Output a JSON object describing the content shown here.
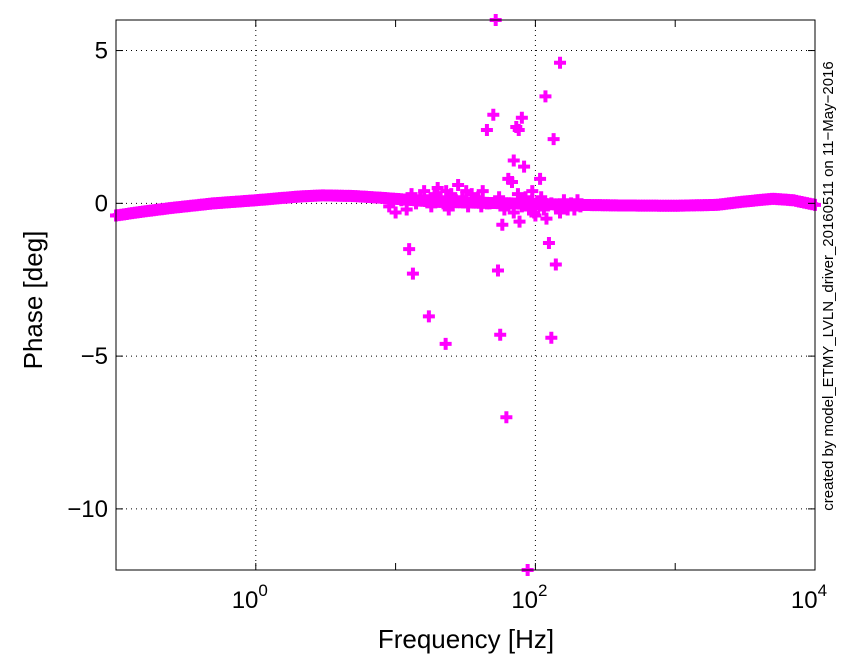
{
  "chart_data": {
    "type": "scatter",
    "xlabel": "Frequency [Hz]",
    "ylabel": "Phase [deg]",
    "x_scale": "log",
    "xlim": [
      0.1,
      10000
    ],
    "ylim": [
      -12,
      6
    ],
    "x_ticks": [
      {
        "value": 1,
        "base": "10",
        "exp": "0"
      },
      {
        "value": 100,
        "base": "10",
        "exp": "2"
      },
      {
        "value": 10000,
        "base": "10",
        "exp": "4"
      }
    ],
    "y_ticks": [
      {
        "value": 5,
        "label": "5"
      },
      {
        "value": 0,
        "label": "0"
      },
      {
        "value": -5,
        "label": "−5"
      },
      {
        "value": -10,
        "label": "−10"
      }
    ],
    "grid": true,
    "marker": "plus",
    "colors": {
      "series": "#ff00ff",
      "axes": "#000000",
      "grid": "#000000"
    },
    "side_note": "created by model_ETMY_LVLN_driver_20160511 on 11−May−2016",
    "series": [
      {
        "curve": [
          [
            0.1,
            -0.4
          ],
          [
            0.15,
            -0.28
          ],
          [
            0.25,
            -0.15
          ],
          [
            0.5,
            0.0
          ],
          [
            1,
            0.1
          ],
          [
            2,
            0.22
          ],
          [
            3,
            0.26
          ],
          [
            5,
            0.24
          ],
          [
            8,
            0.18
          ],
          [
            12,
            0.12
          ],
          [
            20,
            0.05
          ],
          [
            200,
            -0.05
          ],
          [
            400,
            -0.07
          ],
          [
            1000,
            -0.08
          ],
          [
            2000,
            -0.05
          ],
          [
            3000,
            0.05
          ],
          [
            5000,
            0.15
          ],
          [
            7000,
            0.1
          ],
          [
            10000,
            -0.05
          ]
        ],
        "points": [
          [
            9,
            -0.1
          ],
          [
            10,
            -0.3
          ],
          [
            11,
            0.1
          ],
          [
            12,
            -0.2
          ],
          [
            13,
            0.3
          ],
          [
            14,
            0.0
          ],
          [
            15,
            0.2
          ],
          [
            16,
            0.4
          ],
          [
            17,
            0.1
          ],
          [
            18,
            -0.1
          ],
          [
            19,
            0.3
          ],
          [
            20,
            0.5
          ],
          [
            21,
            0.2
          ],
          [
            22,
            0.0
          ],
          [
            23,
            0.4
          ],
          [
            24,
            -0.2
          ],
          [
            25,
            0.3
          ],
          [
            27,
            0.1
          ],
          [
            28,
            0.6
          ],
          [
            30,
            0.2
          ],
          [
            32,
            0.4
          ],
          [
            33,
            -0.1
          ],
          [
            35,
            0.3
          ],
          [
            37,
            0.1
          ],
          [
            39,
            0.2
          ],
          [
            41,
            -0.1
          ],
          [
            45,
            0.0
          ],
          [
            55,
            0.2
          ],
          [
            60,
            -0.2
          ],
          [
            65,
            0.0
          ],
          [
            70,
            -0.3
          ],
          [
            75,
            0.3
          ],
          [
            80,
            -0.1
          ],
          [
            85,
            0.2
          ],
          [
            90,
            -0.2
          ],
          [
            95,
            0.1
          ],
          [
            100,
            -0.4
          ],
          [
            105,
            0.0
          ],
          [
            110,
            0.2
          ],
          [
            115,
            -0.2
          ],
          [
            120,
            -0.5
          ],
          [
            130,
            0.0
          ],
          [
            140,
            -0.1
          ],
          [
            150,
            -0.3
          ],
          [
            160,
            0.1
          ],
          [
            170,
            -0.2
          ],
          [
            180,
            0.0
          ],
          [
            190,
            -0.2
          ],
          [
            200,
            0.1
          ],
          [
            210,
            -0.1
          ],
          [
            12.5,
            -1.5
          ],
          [
            13.3,
            -2.3
          ],
          [
            17.3,
            -3.7
          ],
          [
            22.8,
            -4.6
          ],
          [
            45,
            2.4
          ],
          [
            50,
            2.9
          ],
          [
            52,
            6.0
          ],
          [
            54,
            -2.2
          ],
          [
            56,
            -4.3
          ],
          [
            58,
            -0.7
          ],
          [
            62,
            -7.0
          ],
          [
            64,
            0.8
          ],
          [
            68,
            0.7
          ],
          [
            70,
            1.4
          ],
          [
            73,
            2.5
          ],
          [
            76,
            2.4
          ],
          [
            80,
            2.8
          ],
          [
            83,
            1.2
          ],
          [
            77,
            -0.6
          ],
          [
            88,
            -12.0
          ],
          [
            98,
            -0.3
          ],
          [
            108,
            0.8
          ],
          [
            118,
            3.5
          ],
          [
            125,
            -1.3
          ],
          [
            130,
            -4.4
          ],
          [
            135,
            2.1
          ],
          [
            140,
            -2.0
          ],
          [
            150,
            4.6
          ],
          [
            42,
            0.4
          ],
          [
            47,
            0.0
          ],
          [
            95,
            0.4
          ]
        ]
      }
    ]
  }
}
